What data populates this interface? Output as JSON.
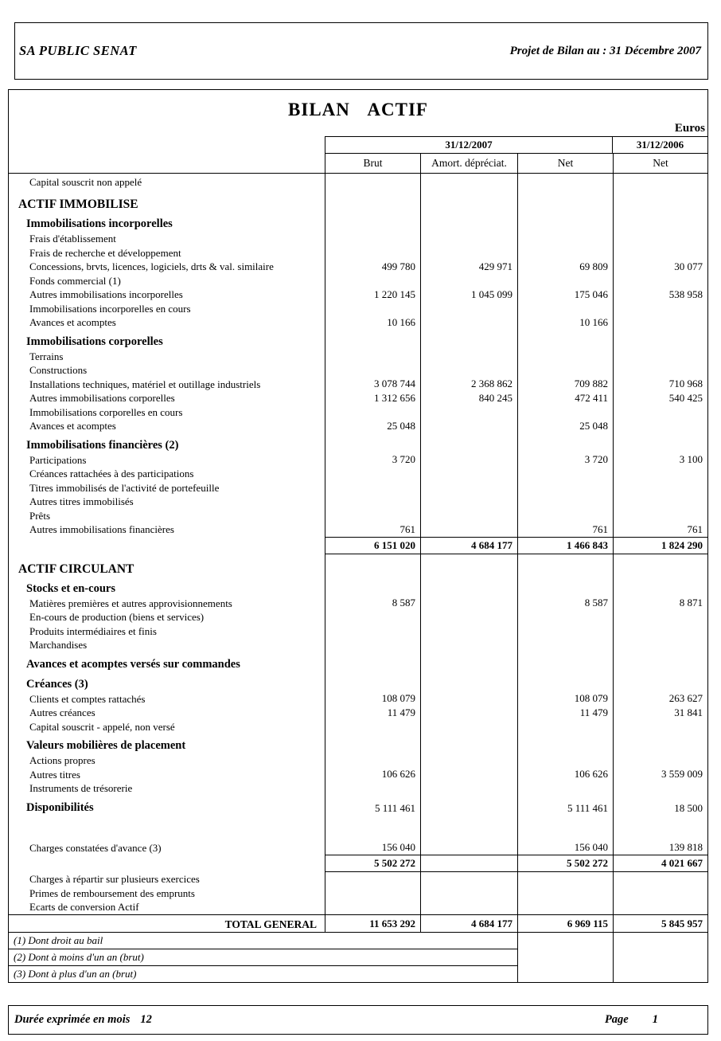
{
  "header": {
    "company": "SA PUBLIC SENAT",
    "report_title": "Projet de Bilan au :  31 Décembre 2007"
  },
  "page_title": "BILAN ACTIF",
  "currency_label": "Euros",
  "table": {
    "col_group_2007": "31/12/2007",
    "col_group_2006": "31/12/2006",
    "columns": [
      "Brut",
      "Amort. dépréciat.",
      "Net",
      "Net"
    ],
    "rows": [
      {
        "type": "plain",
        "label": "Capital souscrit non appelé"
      },
      {
        "type": "section",
        "label": "ACTIF IMMOBILISE"
      },
      {
        "type": "subsection",
        "label": "Immobilisations incorporelles"
      },
      {
        "type": "item",
        "label": "Frais d'établissement"
      },
      {
        "type": "item",
        "label": "Frais de recherche et développement"
      },
      {
        "type": "item",
        "label": "Concessions, brvts, licences, logiciels, drts & val. similaire",
        "values": [
          "499 780",
          "429 971",
          "69 809",
          "30 077"
        ]
      },
      {
        "type": "item",
        "label": "Fonds commercial (1)"
      },
      {
        "type": "item",
        "label": "Autres immobilisations incorporelles",
        "values": [
          "1 220 145",
          "1 045 099",
          "175 046",
          "538 958"
        ]
      },
      {
        "type": "item",
        "label": "Immobilisations incorporelles en cours"
      },
      {
        "type": "item",
        "label": "Avances et acomptes",
        "values": [
          "10 166",
          "",
          "10 166",
          ""
        ]
      },
      {
        "type": "subsection",
        "label": "Immobilisations corporelles"
      },
      {
        "type": "item",
        "label": "Terrains"
      },
      {
        "type": "item",
        "label": "Constructions"
      },
      {
        "type": "item",
        "label": "Installations techniques, matériel et outillage industriels",
        "values": [
          "3 078 744",
          "2 368 862",
          "709 882",
          "710 968"
        ]
      },
      {
        "type": "item",
        "label": "Autres immobilisations corporelles",
        "values": [
          "1 312 656",
          "840 245",
          "472 411",
          "540 425"
        ]
      },
      {
        "type": "item",
        "label": "Immobilisations corporelles en cours"
      },
      {
        "type": "item",
        "label": "Avances et acomptes",
        "values": [
          "25 048",
          "",
          "25 048",
          ""
        ]
      },
      {
        "type": "subsection",
        "label": "Immobilisations financières (2)"
      },
      {
        "type": "item",
        "label": "Participations",
        "values": [
          "3 720",
          "",
          "3 720",
          "3 100"
        ]
      },
      {
        "type": "item",
        "label": "Créances rattachées à des participations"
      },
      {
        "type": "item",
        "label": "Titres immobilisés de l'activité de portefeuille"
      },
      {
        "type": "item",
        "label": "Autres titres immobilisés"
      },
      {
        "type": "item",
        "label": "Prêts"
      },
      {
        "type": "item",
        "label": "Autres immobilisations financières",
        "values": [
          "761",
          "",
          "761",
          "761"
        ]
      },
      {
        "type": "subtotal",
        "label": "",
        "values": [
          "6 151 020",
          "4 684 177",
          "1 466 843",
          "1 824 290"
        ]
      },
      {
        "type": "section",
        "label": "ACTIF CIRCULANT"
      },
      {
        "type": "subsection",
        "label": "Stocks et en-cours"
      },
      {
        "type": "item",
        "label": "Matières premières et autres approvisionnements",
        "values": [
          "8 587",
          "",
          "8 587",
          "8 871"
        ]
      },
      {
        "type": "item",
        "label": "En-cours de production (biens et services)"
      },
      {
        "type": "item",
        "label": "Produits intermédiaires et finis"
      },
      {
        "type": "item",
        "label": "Marchandises"
      },
      {
        "type": "subsection",
        "label": "Avances et acomptes versés sur commandes"
      },
      {
        "type": "subsection",
        "label": "Créances (3)"
      },
      {
        "type": "item",
        "label": "Clients et comptes rattachés",
        "values": [
          "108 079",
          "",
          "108 079",
          "263 627"
        ]
      },
      {
        "type": "item",
        "label": "Autres créances",
        "values": [
          "11 479",
          "",
          "11 479",
          "31 841"
        ]
      },
      {
        "type": "item",
        "label": "Capital souscrit - appelé, non versé"
      },
      {
        "type": "subsection",
        "label": "Valeurs mobilières de placement"
      },
      {
        "type": "item",
        "label": "Actions propres"
      },
      {
        "type": "item",
        "label": "Autres titres",
        "values": [
          "106 626",
          "",
          "106 626",
          "3 559 009"
        ]
      },
      {
        "type": "item",
        "label": "Instruments de trésorerie"
      },
      {
        "type": "subsection",
        "label": "Disponibilités",
        "values": [
          "5 111 461",
          "",
          "5 111 461",
          "18 500"
        ]
      },
      {
        "type": "spacer",
        "label": ""
      },
      {
        "type": "item",
        "label": "Charges constatées d'avance (3)",
        "values": [
          "156 040",
          "",
          "156 040",
          "139 818"
        ]
      },
      {
        "type": "subtotal",
        "label": "",
        "values": [
          "5 502 272",
          "",
          "5 502 272",
          "4 021 667"
        ]
      },
      {
        "type": "item",
        "label": "Charges à répartir sur plusieurs exercices"
      },
      {
        "type": "item",
        "label": "Primes de remboursement des emprunts"
      },
      {
        "type": "item",
        "label": "Ecarts de conversion Actif"
      },
      {
        "type": "total",
        "label": "TOTAL GENERAL",
        "values": [
          "11 653 292",
          "4 684 177",
          "6 969 115",
          "5 845 957"
        ]
      },
      {
        "type": "footnote",
        "label": "(1) Dont droit au bail"
      },
      {
        "type": "footnote",
        "label": "(2) Dont à moins d'un an (brut)"
      },
      {
        "type": "footnote",
        "label": "(3) Dont à plus d'un an (brut)"
      }
    ]
  },
  "footer": {
    "duration_label": "Durée exprimée en mois",
    "duration_value": "12",
    "page_label": "Page",
    "page_number": "1"
  }
}
